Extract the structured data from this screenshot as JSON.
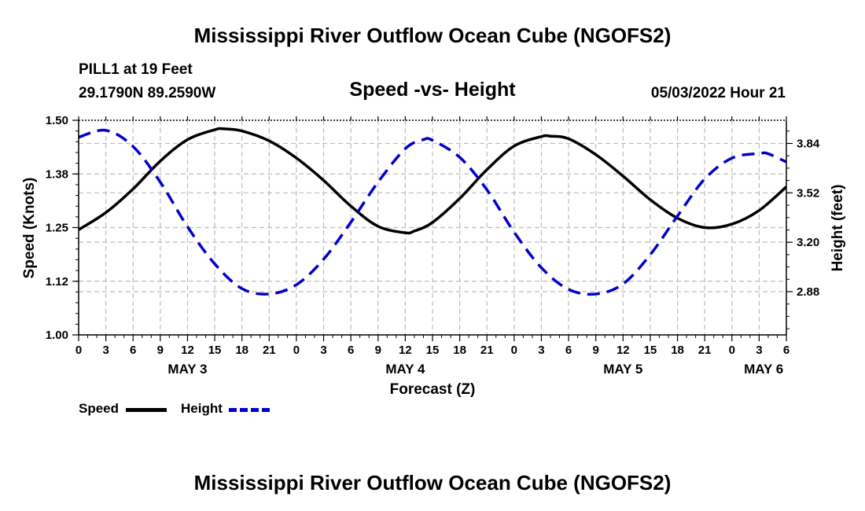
{
  "header": {
    "title": "Mississippi River Outflow Ocean Cube (NGOFS2)",
    "station": "PILL1 at 19 Feet",
    "coordinates": "29.1790N  89.2590W",
    "subtitle": "Speed -vs- Height",
    "datetime": "05/03/2022 Hour 21"
  },
  "footer": {
    "title": "Mississippi River Outflow Ocean Cube (NGOFS2)"
  },
  "legend": {
    "speed_label": "Speed",
    "height_label": "Height",
    "speed_color": "#000000",
    "height_color": "#0000cc"
  },
  "chart_data": {
    "type": "line",
    "xlabel": "Forecast (Z)",
    "ylabel": "Speed (Knots)",
    "y2label": "Height (feet)",
    "x_unit": "hours since 05/03/2022 00Z",
    "xlim": [
      0,
      78
    ],
    "ylim": [
      1.0,
      1.5
    ],
    "y2lim": [
      2.6,
      3.99
    ],
    "x_ticks": [
      0,
      3,
      6,
      9,
      12,
      15,
      18,
      21,
      24,
      27,
      30,
      33,
      36,
      39,
      42,
      45,
      48,
      51,
      54,
      57,
      60,
      63,
      66,
      69,
      72,
      75,
      78
    ],
    "x_tick_labels": [
      "0",
      "3",
      "6",
      "9",
      "12",
      "15",
      "18",
      "21",
      "0",
      "3",
      "6",
      "9",
      "12",
      "15",
      "18",
      "21",
      "0",
      "3",
      "6",
      "9",
      "12",
      "15",
      "18",
      "21",
      "0",
      "3",
      "6"
    ],
    "y_ticks": [
      1.0,
      1.125,
      1.25,
      1.375,
      1.5
    ],
    "y_tick_labels": [
      "1.00",
      "1.12",
      "1.25",
      "1.38",
      "1.50"
    ],
    "y2_ticks": [
      2.88,
      3.2,
      3.52,
      3.84
    ],
    "y2_tick_labels": [
      "2.88",
      "3.20",
      "3.52",
      "3.84"
    ],
    "date_labels": [
      {
        "x": 12,
        "label": "MAY 3"
      },
      {
        "x": 36,
        "label": "MAY 4"
      },
      {
        "x": 60,
        "label": "MAY 5"
      },
      {
        "x": 75.5,
        "label": "MAY 6"
      }
    ],
    "grid": true,
    "series": [
      {
        "name": "Speed",
        "axis": "left",
        "style": "solid",
        "color": "#000000",
        "x": [
          0,
          3,
          6,
          9,
          12,
          15,
          16,
          18,
          21,
          24,
          27,
          30,
          33,
          36,
          37,
          39,
          42,
          45,
          48,
          51,
          52,
          54,
          57,
          60,
          63,
          66,
          69,
          72,
          75,
          78
        ],
        "values": [
          1.245,
          1.285,
          1.34,
          1.405,
          1.455,
          1.478,
          1.48,
          1.475,
          1.452,
          1.412,
          1.36,
          1.3,
          1.253,
          1.238,
          1.242,
          1.262,
          1.318,
          1.385,
          1.44,
          1.462,
          1.463,
          1.457,
          1.42,
          1.37,
          1.315,
          1.272,
          1.25,
          1.258,
          1.29,
          1.345
        ]
      },
      {
        "name": "Height",
        "axis": "right",
        "style": "dashed",
        "color": "#0000cc",
        "x": [
          0,
          3,
          6,
          9,
          12,
          15,
          18,
          21,
          24,
          27,
          30,
          33,
          36,
          38,
          39,
          42,
          45,
          48,
          51,
          54,
          57,
          60,
          63,
          66,
          69,
          72,
          75,
          76,
          78
        ],
        "values": [
          3.88,
          3.925,
          3.82,
          3.59,
          3.3,
          3.06,
          2.9,
          2.865,
          2.925,
          3.09,
          3.33,
          3.59,
          3.806,
          3.865,
          3.86,
          3.75,
          3.54,
          3.265,
          3.035,
          2.895,
          2.865,
          2.93,
          3.12,
          3.37,
          3.61,
          3.745,
          3.775,
          3.773,
          3.72
        ]
      }
    ]
  }
}
